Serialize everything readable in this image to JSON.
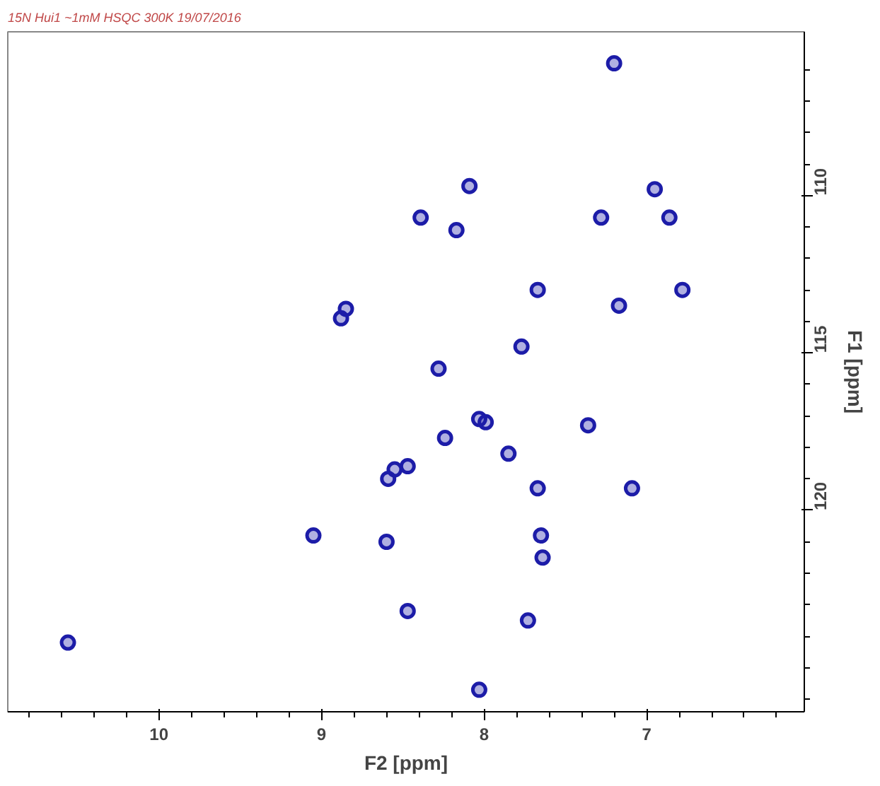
{
  "chart_data": {
    "type": "scatter",
    "title": "15N Hui1 ~1mM HSQC 300K 19/07/2016",
    "xlabel": "F2 [ppm]",
    "ylabel": "F1 [ppm]",
    "x": [
      7.2,
      8.09,
      6.95,
      8.39,
      8.17,
      7.28,
      6.86,
      7.67,
      6.78,
      7.17,
      8.85,
      8.88,
      7.77,
      8.28,
      8.03,
      7.99,
      8.24,
      7.36,
      7.85,
      8.55,
      8.59,
      8.47,
      7.67,
      7.09,
      9.05,
      8.6,
      7.65,
      7.64,
      8.47,
      7.73,
      10.56,
      8.03
    ],
    "series": [
      {
        "color": "#1c1ca8",
        "values": [
          105.8,
          109.7,
          109.8,
          110.7,
          111.1,
          110.7,
          110.7,
          113.0,
          113.0,
          113.5,
          113.6,
          113.9,
          114.8,
          115.5,
          117.1,
          117.2,
          117.7,
          117.3,
          118.2,
          118.7,
          119.0,
          118.6,
          119.3,
          119.3,
          120.8,
          121.0,
          120.8,
          121.5,
          123.2,
          123.5,
          124.2,
          125.7
        ]
      }
    ],
    "xlim": [
      10.93,
      6.03
    ],
    "ylim": [
      126.4,
      104.8
    ],
    "xticks": [
      {
        "value": 10.8,
        "label": null
      },
      {
        "value": 10.6,
        "label": null
      },
      {
        "value": 10.4,
        "label": null
      },
      {
        "value": 10.2,
        "label": null
      },
      10,
      {
        "value": 9.8,
        "label": null
      },
      {
        "value": 9.6,
        "label": null
      },
      {
        "value": 9.4,
        "label": null
      },
      {
        "value": 9.2,
        "label": null
      },
      9,
      {
        "value": 8.8,
        "label": null
      },
      {
        "value": 8.6,
        "label": null
      },
      {
        "value": 8.4,
        "label": null
      },
      {
        "value": 8.2,
        "label": null
      },
      8,
      {
        "value": 7.8,
        "label": null
      },
      {
        "value": 7.6,
        "label": null
      },
      {
        "value": 7.4,
        "label": null
      },
      {
        "value": 7.2,
        "label": null
      },
      7,
      {
        "value": 6.8,
        "label": null
      },
      {
        "value": 6.6,
        "label": null
      },
      {
        "value": 6.4,
        "label": null
      },
      {
        "value": 6.2,
        "label": null
      }
    ],
    "yticks": [
      {
        "value": 106,
        "label": null
      },
      {
        "value": 107,
        "label": null
      },
      {
        "value": 108,
        "label": null
      },
      {
        "value": 109,
        "label": null
      },
      110,
      {
        "value": 111,
        "label": null
      },
      {
        "value": 112,
        "label": null
      },
      {
        "value": 113,
        "label": null
      },
      {
        "value": 114,
        "label": null
      },
      115,
      {
        "value": 116,
        "label": null
      },
      {
        "value": 117,
        "label": null
      },
      {
        "value": 118,
        "label": null
      },
      {
        "value": 119,
        "label": null
      },
      120,
      {
        "value": 121,
        "label": null
      },
      {
        "value": 122,
        "label": null
      },
      {
        "value": 123,
        "label": null
      },
      {
        "value": 124,
        "label": null
      },
      {
        "value": 125,
        "label": null
      },
      {
        "value": 126,
        "label": null
      }
    ],
    "marker": "circle",
    "grid": false
  }
}
